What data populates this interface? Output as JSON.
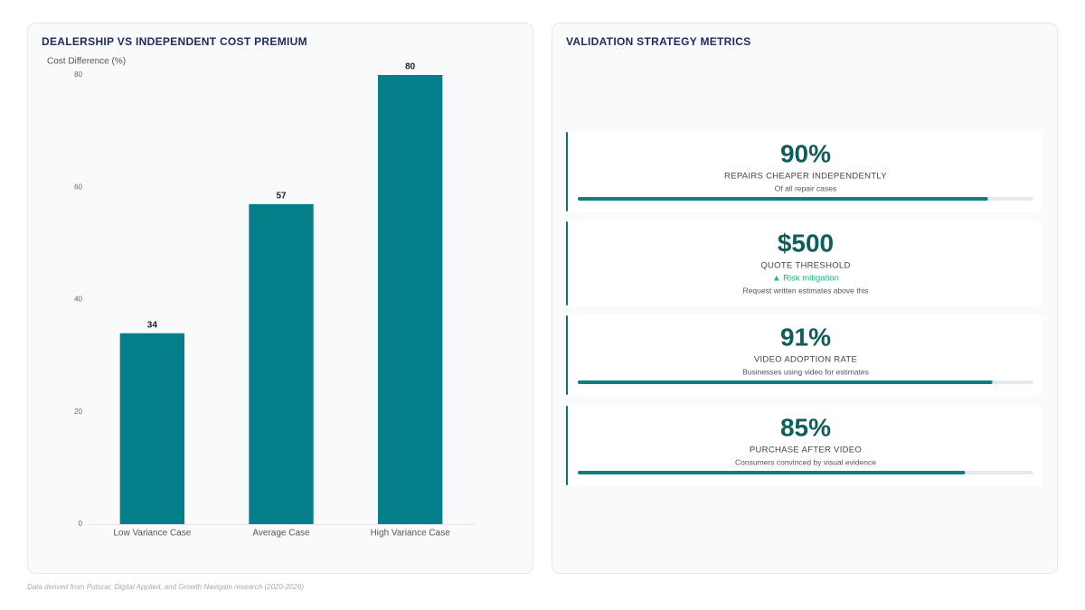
{
  "chart_data": {
    "type": "bar",
    "title": "DEALERSHIP VS INDEPENDENT COST PREMIUM",
    "y_label": "Cost Difference (%)",
    "categories": [
      "Low Variance Case",
      "Average Case",
      "High Variance Case"
    ],
    "values": [
      34,
      57,
      80
    ],
    "color": "#047e88",
    "ylim": [
      0,
      80
    ],
    "yticks": [
      0,
      20,
      40,
      60,
      80
    ],
    "grid": false
  },
  "metrics": {
    "title": "VALIDATION STRATEGY METRICS",
    "items": [
      {
        "headline": "90%",
        "percent": 90,
        "label": "REPAIRS CHEAPER INDEPENDENTLY",
        "note": "Of all repair cases"
      },
      {
        "headline": "$500",
        "label": "QUOTE THRESHOLD",
        "badge": "▲ Risk mitigation",
        "note": "Request written estimates above this"
      },
      {
        "headline": "91%",
        "percent": 91,
        "label": "VIDEO ADOPTION RATE",
        "note": "Businesses using video for estimates"
      },
      {
        "headline": "85%",
        "percent": 85,
        "label": "PURCHASE AFTER VIDEO",
        "note": "Consumers convinced by visual evidence"
      }
    ]
  },
  "footer": "Data derived from Pulscar, Digital Applied, and Growth Navigate research (2020-2026)"
}
